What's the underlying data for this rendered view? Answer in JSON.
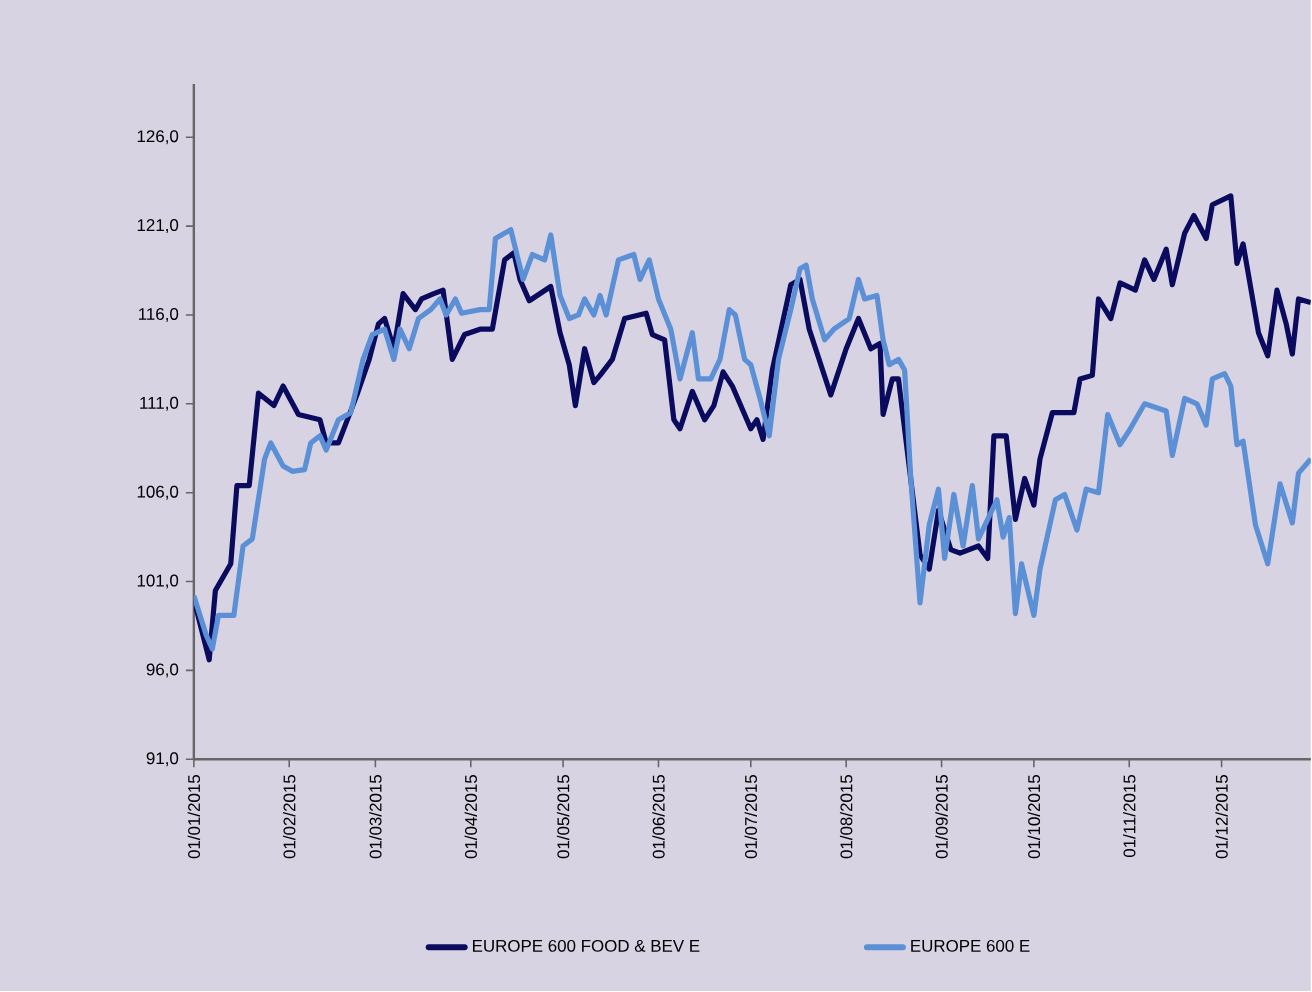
{
  "chart_data": {
    "type": "line",
    "marker": "none",
    "line_style": "solid",
    "grid": false,
    "legend": "bottom",
    "xlim": [
      "2015-01-01",
      "2015-12-30"
    ],
    "xticks": [
      {
        "value": "2015-01-01",
        "label": "01/01/2015"
      },
      {
        "value": "2015-02-01",
        "label": "01/02/2015"
      },
      {
        "value": "2015-03-01",
        "label": "01/03/2015"
      },
      {
        "value": "2015-04-01",
        "label": "01/04/2015"
      },
      {
        "value": "2015-05-01",
        "label": "01/05/2015"
      },
      {
        "value": "2015-06-01",
        "label": "01/06/2015"
      },
      {
        "value": "2015-07-01",
        "label": "01/07/2015"
      },
      {
        "value": "2015-08-01",
        "label": "01/08/2015"
      },
      {
        "value": "2015-09-01",
        "label": "01/09/2015"
      },
      {
        "value": "2015-10-01",
        "label": "01/10/2015"
      },
      {
        "value": "2015-11-01",
        "label": "01/11/2015"
      },
      {
        "value": "2015-12-01",
        "label": "01/12/2015"
      }
    ],
    "ylim": [
      91,
      129
    ],
    "yticks": [
      {
        "value": 91,
        "label": "91,0"
      },
      {
        "value": 96,
        "label": "96,0"
      },
      {
        "value": 101,
        "label": "101,0"
      },
      {
        "value": 106,
        "label": "106,0"
      },
      {
        "value": 111,
        "label": "111,0"
      },
      {
        "value": 116,
        "label": "116,0"
      },
      {
        "value": 121,
        "label": "121,0"
      },
      {
        "value": 126,
        "label": "126,0"
      }
    ],
    "series": [
      {
        "name": "EUROPE 600 FOOD & BEV E",
        "color": "#0a0a5e",
        "x": [
          "2015-01-01",
          "2015-01-06",
          "2015-01-08",
          "2015-01-13",
          "2015-01-15",
          "2015-01-19",
          "2015-01-22",
          "2015-01-27",
          "2015-01-30",
          "2015-02-04",
          "2015-02-11",
          "2015-02-13",
          "2015-02-17",
          "2015-02-23",
          "2015-02-27",
          "2015-03-02",
          "2015-03-04",
          "2015-03-07",
          "2015-03-10",
          "2015-03-14",
          "2015-03-16",
          "2015-03-20",
          "2015-03-23",
          "2015-03-26",
          "2015-03-30",
          "2015-04-04",
          "2015-04-08",
          "2015-04-12",
          "2015-04-15",
          "2015-04-17",
          "2015-04-20",
          "2015-04-27",
          "2015-04-30",
          "2015-05-03",
          "2015-05-05",
          "2015-05-08",
          "2015-05-11",
          "2015-05-13",
          "2015-05-17",
          "2015-05-21",
          "2015-05-28",
          "2015-05-30",
          "2015-06-03",
          "2015-06-06",
          "2015-06-08",
          "2015-06-12",
          "2015-06-16",
          "2015-06-19",
          "2015-06-22",
          "2015-06-25",
          "2015-07-01",
          "2015-07-03",
          "2015-07-05",
          "2015-07-08",
          "2015-07-14",
          "2015-07-17",
          "2015-07-20",
          "2015-07-27",
          "2015-08-01",
          "2015-08-05",
          "2015-08-09",
          "2015-08-12",
          "2015-08-13",
          "2015-08-16",
          "2015-08-18",
          "2015-08-25",
          "2015-08-28",
          "2015-08-31",
          "2015-09-04",
          "2015-09-07",
          "2015-09-13",
          "2015-09-16",
          "2015-09-18",
          "2015-09-22",
          "2015-09-25",
          "2015-09-28",
          "2015-10-01",
          "2015-10-03",
          "2015-10-07",
          "2015-10-14",
          "2015-10-16",
          "2015-10-20",
          "2015-10-22",
          "2015-10-26",
          "2015-10-29",
          "2015-11-03",
          "2015-11-06",
          "2015-11-09",
          "2015-11-13",
          "2015-11-15",
          "2015-11-19",
          "2015-11-22",
          "2015-11-26",
          "2015-11-28",
          "2015-12-04",
          "2015-12-06",
          "2015-12-08",
          "2015-12-10",
          "2015-12-13",
          "2015-12-16",
          "2015-12-19",
          "2015-12-22",
          "2015-12-24",
          "2015-12-26",
          "2015-12-30"
        ],
        "values": [
          100.0,
          96.6,
          100.5,
          102.0,
          106.4,
          106.4,
          111.6,
          110.9,
          112.0,
          110.4,
          110.1,
          108.8,
          108.8,
          111.5,
          113.5,
          115.5,
          115.8,
          114.1,
          117.2,
          116.3,
          116.9,
          117.2,
          117.4,
          113.5,
          114.9,
          115.2,
          115.2,
          119.1,
          119.5,
          118.0,
          116.8,
          117.6,
          115.0,
          113.2,
          110.9,
          114.1,
          112.2,
          112.6,
          113.5,
          115.8,
          116.1,
          114.9,
          114.6,
          110.1,
          109.6,
          111.7,
          110.1,
          110.9,
          112.8,
          112.0,
          109.6,
          110.1,
          109.0,
          112.9,
          117.7,
          118.0,
          115.2,
          111.5,
          114.1,
          115.8,
          114.1,
          114.4,
          110.4,
          112.4,
          112.4,
          102.5,
          101.7,
          105.0,
          102.8,
          102.6,
          103.0,
          102.3,
          109.2,
          109.2,
          104.5,
          106.8,
          105.3,
          107.9,
          110.5,
          110.5,
          112.4,
          112.6,
          116.9,
          115.8,
          117.8,
          117.4,
          119.1,
          118.0,
          119.7,
          117.7,
          120.6,
          121.6,
          120.3,
          122.2,
          122.7,
          118.9,
          120.0,
          118.0,
          115.0,
          113.7,
          117.4,
          115.5,
          113.8,
          116.9,
          116.7
        ]
      },
      {
        "name": "EUROPE 600 E",
        "color": "#5b8fd6",
        "x": [
          "2015-01-01",
          "2015-01-05",
          "2015-01-07",
          "2015-01-09",
          "2015-01-14",
          "2015-01-17",
          "2015-01-20",
          "2015-01-24",
          "2015-01-26",
          "2015-01-30",
          "2015-02-02",
          "2015-02-06",
          "2015-02-08",
          "2015-02-11",
          "2015-02-13",
          "2015-02-17",
          "2015-02-21",
          "2015-02-25",
          "2015-02-28",
          "2015-03-04",
          "2015-03-07",
          "2015-03-09",
          "2015-03-12",
          "2015-03-15",
          "2015-03-19",
          "2015-03-22",
          "2015-03-24",
          "2015-03-27",
          "2015-03-29",
          "2015-04-04",
          "2015-04-07",
          "2015-04-09",
          "2015-04-14",
          "2015-04-18",
          "2015-04-21",
          "2015-04-25",
          "2015-04-27",
          "2015-04-30",
          "2015-05-03",
          "2015-05-06",
          "2015-05-08",
          "2015-05-11",
          "2015-05-13",
          "2015-05-15",
          "2015-05-19",
          "2015-05-24",
          "2015-05-26",
          "2015-05-29",
          "2015-06-01",
          "2015-06-05",
          "2015-06-08",
          "2015-06-12",
          "2015-06-14",
          "2015-06-18",
          "2015-06-21",
          "2015-06-24",
          "2015-06-26",
          "2015-06-29",
          "2015-07-01",
          "2015-07-04",
          "2015-07-07",
          "2015-07-10",
          "2015-07-14",
          "2015-07-17",
          "2015-07-19",
          "2015-07-21",
          "2015-07-25",
          "2015-07-28",
          "2015-08-02",
          "2015-08-05",
          "2015-08-07",
          "2015-08-11",
          "2015-08-13",
          "2015-08-15",
          "2015-08-18",
          "2015-08-20",
          "2015-08-22",
          "2015-08-25",
          "2015-08-28",
          "2015-08-31",
          "2015-09-02",
          "2015-09-05",
          "2015-09-08",
          "2015-09-11",
          "2015-09-13",
          "2015-09-19",
          "2015-09-21",
          "2015-09-23",
          "2015-09-25",
          "2015-09-27",
          "2015-10-01",
          "2015-10-03",
          "2015-10-08",
          "2015-10-11",
          "2015-10-15",
          "2015-10-18",
          "2015-10-22",
          "2015-10-25",
          "2015-10-29",
          "2015-11-01",
          "2015-11-06",
          "2015-11-13",
          "2015-11-15",
          "2015-11-19",
          "2015-11-23",
          "2015-11-26",
          "2015-11-28",
          "2015-12-02",
          "2015-12-04",
          "2015-12-06",
          "2015-12-08",
          "2015-12-12",
          "2015-12-16",
          "2015-12-20",
          "2015-12-24",
          "2015-12-26",
          "2015-12-30"
        ],
        "values": [
          100.2,
          98.0,
          97.2,
          99.1,
          99.1,
          103.0,
          103.4,
          107.9,
          108.8,
          107.5,
          107.2,
          107.3,
          108.8,
          109.2,
          108.4,
          110.1,
          110.5,
          113.5,
          114.9,
          115.2,
          113.5,
          115.2,
          114.1,
          115.8,
          116.3,
          116.9,
          116.0,
          116.9,
          116.1,
          116.3,
          116.3,
          120.3,
          120.8,
          118.0,
          119.4,
          119.1,
          120.5,
          117.1,
          115.8,
          116.0,
          116.9,
          116.0,
          117.1,
          116.0,
          119.1,
          119.4,
          118.0,
          119.1,
          116.9,
          115.2,
          112.4,
          115.0,
          112.4,
          112.4,
          113.5,
          116.3,
          116.0,
          113.5,
          113.2,
          111.3,
          109.2,
          113.5,
          116.3,
          118.6,
          118.8,
          116.9,
          114.6,
          115.2,
          115.8,
          118.0,
          116.9,
          117.1,
          114.6,
          113.2,
          113.5,
          112.9,
          106.8,
          99.8,
          104.2,
          106.2,
          102.3,
          105.9,
          103.0,
          106.4,
          103.4,
          105.6,
          103.5,
          104.6,
          99.2,
          102.0,
          99.1,
          101.7,
          105.6,
          105.9,
          103.9,
          106.2,
          106.0,
          110.4,
          108.7,
          109.5,
          111.0,
          110.6,
          108.1,
          111.3,
          111.0,
          109.8,
          112.4,
          112.7,
          112.0,
          108.7,
          108.9,
          104.2,
          102.0,
          106.5,
          104.3,
          107.1,
          107.9
        ]
      }
    ]
  }
}
